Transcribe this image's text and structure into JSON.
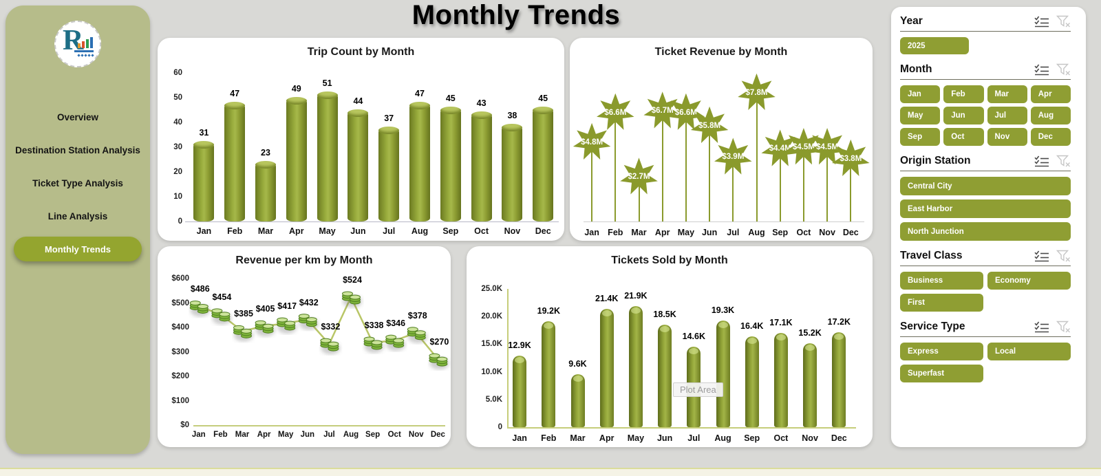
{
  "page": {
    "title": "Monthly Trends"
  },
  "sidebar": {
    "logo_letter": "R",
    "items": [
      {
        "label": "Overview",
        "active": false
      },
      {
        "label": "Destination Station Analysis",
        "active": false
      },
      {
        "label": "Ticket Type Analysis",
        "active": false
      },
      {
        "label": "Line Analysis",
        "active": false
      },
      {
        "label": "Monthly Trends",
        "active": true
      }
    ]
  },
  "chart_data": [
    {
      "type": "bar",
      "title": "Trip Count by Month",
      "categories": [
        "Jan",
        "Feb",
        "Mar",
        "Apr",
        "May",
        "Jun",
        "Jul",
        "Aug",
        "Sep",
        "Oct",
        "Nov",
        "Dec"
      ],
      "values": [
        31,
        47,
        23,
        49,
        51,
        44,
        37,
        47,
        45,
        43,
        38,
        45
      ],
      "labels": [
        "31",
        "47",
        "23",
        "49",
        "51",
        "44",
        "37",
        "47",
        "45",
        "43",
        "38",
        "45"
      ],
      "ylim": [
        0,
        60
      ],
      "yticks": [
        {
          "value": 0,
          "label": "0"
        },
        {
          "value": 10,
          "label": "10"
        },
        {
          "value": 20,
          "label": "20"
        },
        {
          "value": 30,
          "label": "30"
        },
        {
          "value": 40,
          "label": "40"
        },
        {
          "value": 50,
          "label": "50"
        },
        {
          "value": 60,
          "label": "60"
        }
      ],
      "xlabel": "",
      "ylabel": "",
      "grid": false,
      "legend": "none",
      "bar_style": "cylinder"
    },
    {
      "type": "lollipop-star",
      "title": "Ticket Revenue by Month",
      "categories": [
        "Jan",
        "Feb",
        "Mar",
        "Apr",
        "May",
        "Jun",
        "Jul",
        "Aug",
        "Sep",
        "Oct",
        "Nov",
        "Dec"
      ],
      "values_millions": [
        4.8,
        6.6,
        2.7,
        6.7,
        6.6,
        5.8,
        3.9,
        7.8,
        4.4,
        4.5,
        4.5,
        3.8
      ],
      "labels": [
        "$4.8M",
        "$6.6M",
        "$2.7M",
        "$6.7M",
        "$6.6M",
        "$5.8M",
        "$3.9M",
        "$7.8M",
        "$4.4M",
        "$4.5M",
        "$4.5M",
        "$3.8M"
      ],
      "ylim_millions": [
        0,
        8
      ],
      "xlabel": "",
      "ylabel": "",
      "grid": false,
      "legend": "none",
      "marker": "star"
    },
    {
      "type": "line",
      "title": "Revenue per km by Month",
      "categories": [
        "Jan",
        "Feb",
        "Mar",
        "Apr",
        "May",
        "Jun",
        "Jul",
        "Aug",
        "Sep",
        "Oct",
        "Nov",
        "Dec"
      ],
      "values": [
        486,
        454,
        385,
        405,
        417,
        432,
        332,
        524,
        338,
        346,
        378,
        270
      ],
      "labels": [
        "$486",
        "$454",
        "$385",
        "$405",
        "$417",
        "$432",
        "$332",
        "$524",
        "$338",
        "$346",
        "$378",
        "$270"
      ],
      "ylim": [
        0,
        600
      ],
      "yticks": [
        {
          "value": 0,
          "label": "$0"
        },
        {
          "value": 100,
          "label": "$100"
        },
        {
          "value": 200,
          "label": "$200"
        },
        {
          "value": 300,
          "label": "$300"
        },
        {
          "value": 400,
          "label": "$400"
        },
        {
          "value": 500,
          "label": "$500"
        },
        {
          "value": 600,
          "label": "$600"
        }
      ],
      "xlabel": "",
      "ylabel": "",
      "grid": false,
      "legend": "none",
      "marker": "coin-stack"
    },
    {
      "type": "bar",
      "title": "Tickets Sold by Month",
      "categories": [
        "Jan",
        "Feb",
        "Mar",
        "Apr",
        "May",
        "Jun",
        "Jul",
        "Aug",
        "Sep",
        "Oct",
        "Nov",
        "Dec"
      ],
      "values": [
        12900,
        19200,
        9600,
        21400,
        21900,
        18500,
        14600,
        19300,
        16400,
        17100,
        15200,
        17200
      ],
      "labels": [
        "12.9K",
        "19.2K",
        "9.6K",
        "21.4K",
        "21.9K",
        "18.5K",
        "14.6K",
        "19.3K",
        "16.4K",
        "17.1K",
        "15.2K",
        "17.2K"
      ],
      "ylim": [
        0,
        25000
      ],
      "yticks": [
        {
          "value": 0,
          "label": "0"
        },
        {
          "value": 5000,
          "label": "5.0K"
        },
        {
          "value": 10000,
          "label": "10.0K"
        },
        {
          "value": 15000,
          "label": "15.0K"
        },
        {
          "value": 20000,
          "label": "20.0K"
        },
        {
          "value": 25000,
          "label": "25.0K"
        }
      ],
      "xlabel": "",
      "ylabel": "",
      "grid": false,
      "legend": "none",
      "bar_style": "capsule",
      "overlay_label": "Plot Area"
    }
  ],
  "filters": [
    {
      "title": "Year",
      "layout": "single",
      "options": [
        "2025"
      ]
    },
    {
      "title": "Month",
      "layout": "grid4",
      "options": [
        "Jan",
        "Feb",
        "Mar",
        "Apr",
        "May",
        "Jun",
        "Jul",
        "Aug",
        "Sep",
        "Oct",
        "Nov",
        "Dec"
      ]
    },
    {
      "title": "Origin Station",
      "layout": "stack",
      "options": [
        "Central City",
        "East Harbor",
        "North Junction"
      ]
    },
    {
      "title": "Travel Class",
      "layout": "grid2",
      "options": [
        "Business",
        "Economy",
        "First"
      ]
    },
    {
      "title": "Service Type",
      "layout": "grid2",
      "options": [
        "Express",
        "Local",
        "Superfast"
      ]
    }
  ],
  "colors": {
    "accent_green": "#8f9e33",
    "sidebar_bg": "#b6bc8a",
    "active_pill": "#94a52f",
    "bar_dark": "#6b7a21",
    "bar_light": "#a6b84a",
    "star_green": "#8a9a2c",
    "coin_green": "#7fb43c",
    "page_bg": "#d9d9d6"
  }
}
